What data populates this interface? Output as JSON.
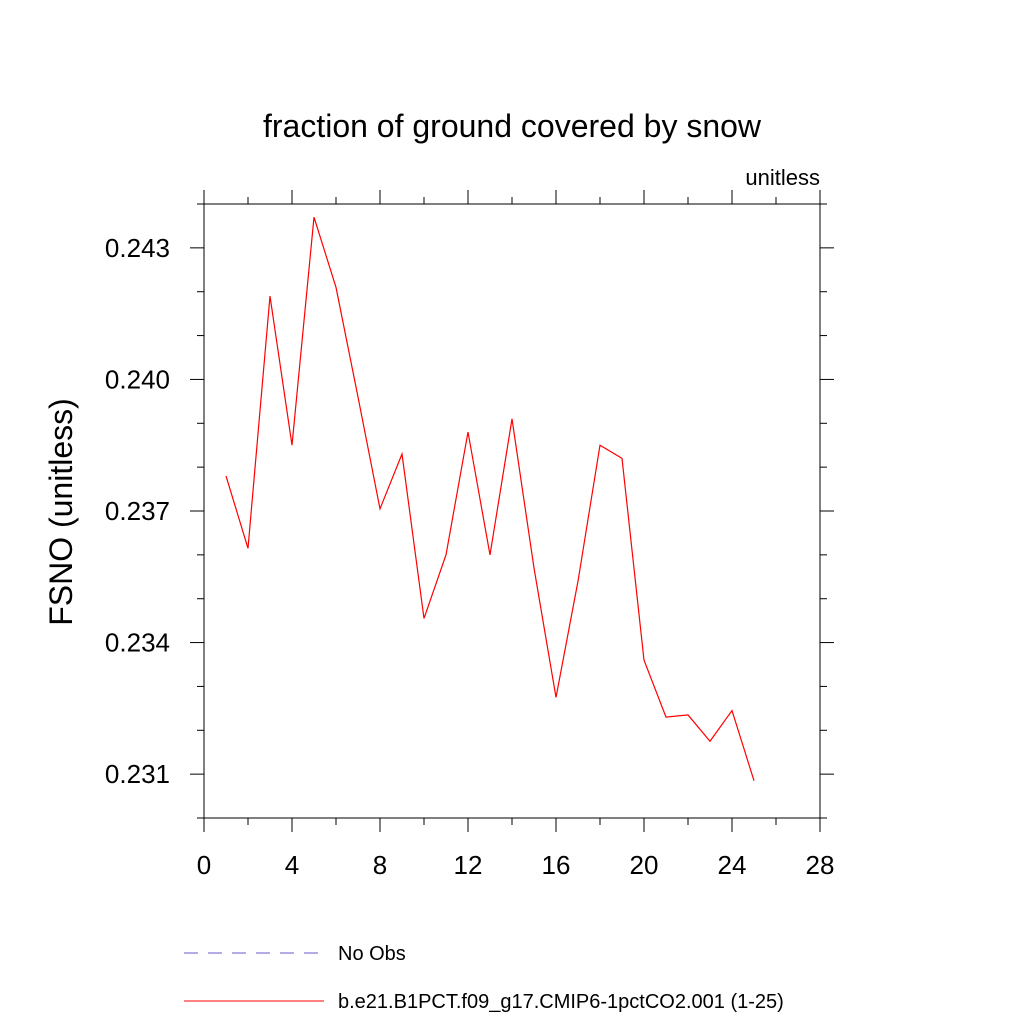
{
  "chart_data": {
    "type": "line",
    "title": "fraction of ground covered by snow",
    "subtitle": "unitless",
    "xlabel": "",
    "ylabel": "FSNO  (unitless)",
    "xlim": [
      0,
      28
    ],
    "ylim": [
      0.23,
      0.244
    ],
    "x_ticks": [
      0,
      4,
      8,
      12,
      16,
      20,
      24,
      28
    ],
    "y_ticks": [
      0.231,
      0.234,
      0.237,
      0.24,
      0.243
    ],
    "y_tick_labels": [
      "0.231",
      "0.234",
      "0.237",
      "0.240",
      "0.243"
    ],
    "grid": false,
    "legend_position": "bottom",
    "series": [
      {
        "name": "No Obs",
        "color": "#6a5acd",
        "dashed": true,
        "x": [],
        "values": []
      },
      {
        "name": "b.e21.B1PCT.f09_g17.CMIP6-1pctCO2.001 (1-25)",
        "color": "#ff0000",
        "dashed": false,
        "x": [
          1,
          2,
          3,
          4,
          5,
          6,
          7,
          8,
          9,
          10,
          11,
          12,
          13,
          14,
          15,
          16,
          17,
          18,
          19,
          20,
          21,
          22,
          23,
          24,
          25
        ],
        "values": [
          0.2378,
          0.23615,
          0.2419,
          0.2385,
          0.2437,
          0.2421,
          0.2396,
          0.23705,
          0.2383,
          0.23455,
          0.236,
          0.2388,
          0.236,
          0.2391,
          0.2357,
          0.23275,
          0.2354,
          0.2385,
          0.2382,
          0.2336,
          0.2323,
          0.23235,
          0.23175,
          0.23245,
          0.23085
        ]
      }
    ]
  }
}
